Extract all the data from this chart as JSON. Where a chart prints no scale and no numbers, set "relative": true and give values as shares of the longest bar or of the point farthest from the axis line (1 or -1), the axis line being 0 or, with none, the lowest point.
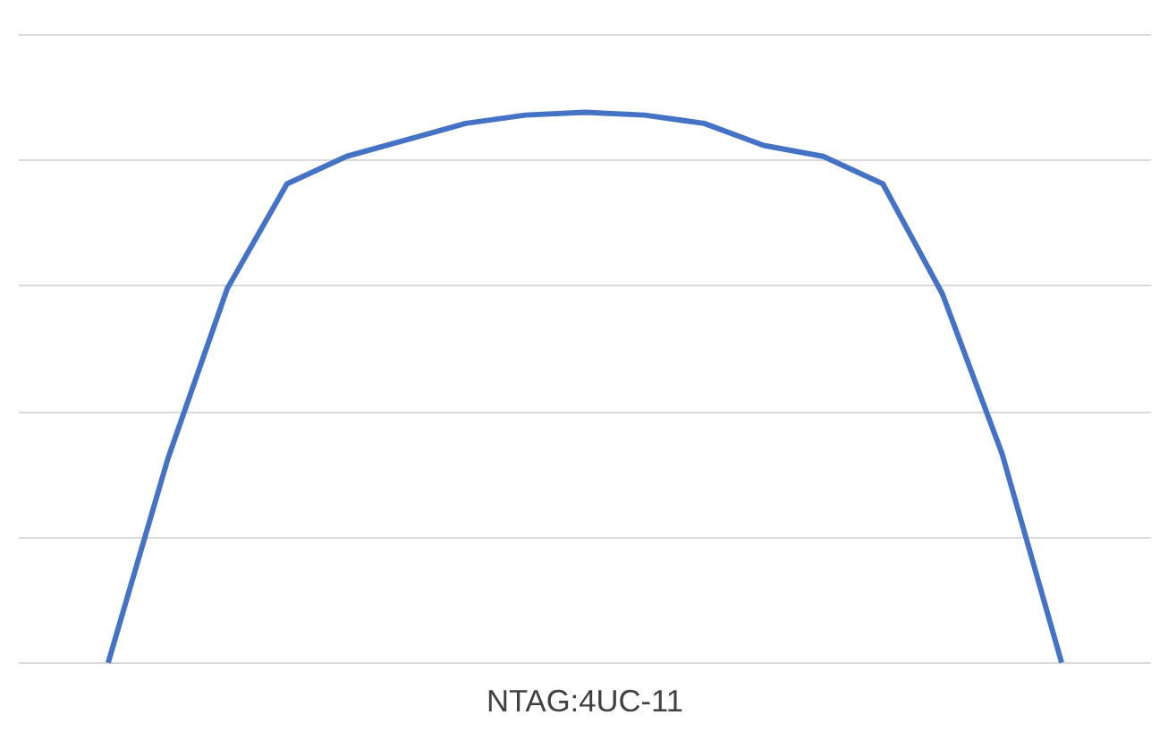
{
  "chart_data": {
    "type": "line",
    "relative": true,
    "xlabel": "NTAG:4UC-11",
    "grid": "y",
    "categories": [
      null,
      null,
      null,
      null,
      null,
      null,
      null,
      null,
      null,
      null,
      null,
      null,
      null,
      null,
      null,
      null,
      null
    ],
    "series": [
      {
        "color": "#4472c4",
        "values": [
          0,
          0.37,
          0.68,
          0.87,
          0.92,
          0.95,
          0.98,
          0.995,
          1,
          0.995,
          0.98,
          0.94,
          0.92,
          0.87,
          0.67,
          0.38,
          0
        ]
      }
    ]
  }
}
